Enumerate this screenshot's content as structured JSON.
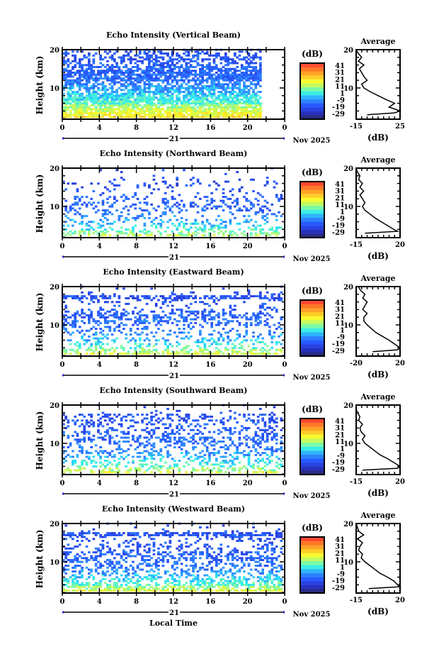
{
  "chart_data": [
    {
      "type": "heatmap",
      "title": "Echo Intensity (Vertical Beam)",
      "ylabel": "Height (km)",
      "xlabel": "Local Time",
      "ylim": [
        0,
        20
      ],
      "xlim": [
        0,
        24
      ],
      "ytick_labels": [
        "20",
        "10"
      ],
      "xtick_labels": [
        "0",
        "4",
        "8",
        "12",
        "16",
        "20",
        "0"
      ],
      "day_label": "21",
      "date_label": "Nov 2025",
      "colorbar": {
        "label": "(dB)",
        "ticks": [
          "41",
          "31",
          "21",
          "11",
          "1",
          "-9",
          "-19",
          "-29"
        ],
        "range": [
          -34,
          46
        ]
      },
      "mean_db_by_km": [
        25,
        25,
        24,
        20,
        17,
        12,
        6,
        2,
        0,
        -3,
        -5,
        -9,
        -11,
        -12,
        -13,
        -12,
        -14,
        -15,
        -15,
        -16,
        -16
      ],
      "coverage_by_km": [
        0.9,
        0.9,
        0.9,
        0.9,
        0.9,
        0.85,
        0.85,
        0.8,
        0.75,
        0.7,
        0.7,
        0.5,
        0.8,
        0.8,
        0.8,
        0.6,
        0.5,
        0.5,
        0.4,
        0.3,
        0.2
      ],
      "data_end_hour": 21.5,
      "average": {
        "title": "Average",
        "xlabel": "(dB)",
        "xlim": [
          -15,
          25
        ],
        "xtick_labels": [
          "-15",
          "25"
        ],
        "ytick_labels": [
          "20",
          "10"
        ],
        "heights": [
          3,
          3.5,
          4,
          5,
          6,
          7,
          8,
          9,
          10,
          11,
          12,
          13,
          14,
          15,
          16,
          17,
          18,
          19,
          20
        ],
        "values": [
          -5,
          20,
          25,
          15,
          20,
          12,
          5,
          -2,
          -8,
          -10,
          -5,
          -8,
          -10,
          -12,
          -8,
          -13,
          -10,
          -13,
          -15
        ]
      }
    },
    {
      "type": "heatmap",
      "title": "Echo Intensity (Northward Beam)",
      "ylabel": "Height (km)",
      "xlabel": "Local Time",
      "ylim": [
        0,
        20
      ],
      "xlim": [
        0,
        24
      ],
      "ytick_labels": [
        "20",
        "10"
      ],
      "xtick_labels": [
        "0",
        "4",
        "8",
        "12",
        "16",
        "20",
        "0"
      ],
      "day_label": "21",
      "date_label": "Nov 2025",
      "colorbar": {
        "label": "(dB)",
        "ticks": [
          "41",
          "31",
          "21",
          "11",
          "1",
          "-9",
          "-19",
          "-29"
        ],
        "range": [
          -34,
          46
        ]
      },
      "mean_db_by_km": [
        18,
        16,
        14,
        10,
        4,
        0,
        -4,
        -8,
        -10,
        -12,
        -13,
        -12,
        -14,
        -15,
        -16,
        -17,
        -17,
        -18,
        -18,
        -18,
        -18
      ],
      "coverage_by_km": [
        0.6,
        0.6,
        0.55,
        0.4,
        0.3,
        0.25,
        0.25,
        0.2,
        0.2,
        0.25,
        0.3,
        0.25,
        0.2,
        0.12,
        0.1,
        0.1,
        0.12,
        0.08,
        0.03,
        0.02,
        0.02
      ],
      "data_end_hour": 23.7,
      "average": {
        "title": "Average",
        "xlabel": "(dB)",
        "xlim": [
          -15,
          20
        ],
        "xtick_labels": [
          "-15",
          "20"
        ],
        "ytick_labels": [
          "20",
          "10"
        ],
        "heights": [
          3,
          3.5,
          4,
          5,
          6,
          7,
          8,
          9,
          10,
          11,
          12,
          13,
          14,
          15,
          16,
          17,
          18,
          19,
          20
        ],
        "values": [
          -8,
          18,
          15,
          10,
          5,
          0,
          -4,
          -8,
          -10,
          -8,
          -10,
          -12,
          -9,
          -12,
          -10,
          -13,
          -12,
          -14,
          -15
        ]
      }
    },
    {
      "type": "heatmap",
      "title": "Echo Intensity (Eastward Beam)",
      "ylabel": "Height (km)",
      "xlabel": "Local Time",
      "ylim": [
        0,
        20
      ],
      "xlim": [
        0,
        24
      ],
      "ytick_labels": [
        "20",
        "10"
      ],
      "xtick_labels": [
        "0",
        "4",
        "8",
        "12",
        "16",
        "20",
        "0"
      ],
      "day_label": "21",
      "date_label": "Nov 2025",
      "colorbar": {
        "label": "(dB)",
        "ticks": [
          "41",
          "31",
          "21",
          "11",
          "1",
          "-9",
          "-19",
          "-29"
        ],
        "range": [
          -34,
          46
        ]
      },
      "mean_db_by_km": [
        22,
        20,
        18,
        12,
        6,
        2,
        -2,
        -6,
        -9,
        -11,
        -12,
        -11,
        -13,
        -14,
        -15,
        -15,
        -16,
        -16,
        -16,
        -17,
        -17
      ],
      "coverage_by_km": [
        0.85,
        0.85,
        0.75,
        0.4,
        0.3,
        0.3,
        0.25,
        0.2,
        0.2,
        0.25,
        0.35,
        0.4,
        0.45,
        0.3,
        0.2,
        0.15,
        0.2,
        0.6,
        0.1,
        0.03,
        0.02
      ],
      "data_end_hour": 23.7,
      "average": {
        "title": "Average",
        "xlabel": "(dB)",
        "xlim": [
          -20,
          20
        ],
        "xtick_labels": [
          "-20",
          "20"
        ],
        "ytick_labels": [
          "20",
          "10"
        ],
        "heights": [
          3,
          3.5,
          4,
          5,
          6,
          7,
          8,
          9,
          10,
          11,
          12,
          13,
          14,
          15,
          16,
          17,
          18,
          19,
          20
        ],
        "values": [
          -5,
          18,
          20,
          15,
          10,
          4,
          -2,
          -6,
          -10,
          -13,
          -13,
          -10,
          -14,
          -12,
          -10,
          -14,
          -12,
          -16,
          -18
        ]
      }
    },
    {
      "type": "heatmap",
      "title": "Echo Intensity (Southward Beam)",
      "ylabel": "Height (km)",
      "xlabel": "Local Time",
      "ylim": [
        0,
        20
      ],
      "xlim": [
        0,
        24
      ],
      "ytick_labels": [
        "20",
        "10"
      ],
      "xtick_labels": [
        "0",
        "4",
        "8",
        "12",
        "16",
        "20",
        "0"
      ],
      "day_label": "21",
      "date_label": "Nov 2025",
      "colorbar": {
        "label": "(dB)",
        "ticks": [
          "41",
          "31",
          "21",
          "11",
          "1",
          "-9",
          "-19",
          "-29"
        ],
        "range": [
          -34,
          46
        ]
      },
      "mean_db_by_km": [
        20,
        22,
        18,
        12,
        6,
        2,
        -2,
        -5,
        -8,
        -10,
        -11,
        -12,
        -13,
        -14,
        -15,
        -15,
        -16,
        -16,
        -17,
        -17,
        -18
      ],
      "coverage_by_km": [
        0.5,
        0.55,
        0.45,
        0.35,
        0.3,
        0.3,
        0.3,
        0.3,
        0.3,
        0.3,
        0.35,
        0.35,
        0.3,
        0.25,
        0.25,
        0.25,
        0.3,
        0.3,
        0.05,
        0.02,
        0.02
      ],
      "data_end_hour": 23.7,
      "average": {
        "title": "Average",
        "xlabel": "(dB)",
        "xlim": [
          -15,
          20
        ],
        "xtick_labels": [
          "-15",
          "20"
        ],
        "ytick_labels": [
          "20",
          "10"
        ],
        "heights": [
          3,
          3.5,
          4,
          5,
          6,
          7,
          8,
          9,
          10,
          11,
          12,
          13,
          14,
          15,
          16,
          17,
          18,
          19,
          20
        ],
        "values": [
          -10,
          18,
          20,
          15,
          10,
          4,
          0,
          -4,
          -8,
          -10,
          -8,
          -11,
          -12,
          -10,
          -13,
          -12,
          -14,
          -15,
          -15
        ]
      }
    },
    {
      "type": "heatmap",
      "title": "Echo Intensity (Westward Beam)",
      "ylabel": "Height (km)",
      "xlabel": "Local Time",
      "ylim": [
        0,
        20
      ],
      "xlim": [
        0,
        24
      ],
      "ytick_labels": [
        "20",
        "10"
      ],
      "xtick_labels": [
        "0",
        "4",
        "8",
        "12",
        "16",
        "20",
        "0"
      ],
      "day_label": "21",
      "date_label": "Nov 2025",
      "colorbar": {
        "label": "(dB)",
        "ticks": [
          "41",
          "31",
          "21",
          "11",
          "1",
          "-9",
          "-19",
          "-29"
        ],
        "range": [
          -34,
          46
        ]
      },
      "mean_db_by_km": [
        22,
        22,
        18,
        12,
        6,
        2,
        -2,
        -6,
        -9,
        -11,
        -12,
        -12,
        -13,
        -14,
        -15,
        -15,
        -16,
        -16,
        -17,
        -17,
        -17
      ],
      "coverage_by_km": [
        0.9,
        0.9,
        0.8,
        0.6,
        0.5,
        0.45,
        0.4,
        0.35,
        0.35,
        0.4,
        0.45,
        0.5,
        0.35,
        0.25,
        0.2,
        0.15,
        0.2,
        0.7,
        0.1,
        0.03,
        0.02
      ],
      "data_end_hour": 23.7,
      "average": {
        "title": "Average",
        "xlabel": "(dB)",
        "xlim": [
          -15,
          20
        ],
        "xtick_labels": [
          "-15",
          "20"
        ],
        "ytick_labels": [
          "20",
          "10"
        ],
        "heights": [
          3,
          3.5,
          4,
          5,
          6,
          7,
          8,
          9,
          10,
          11,
          12,
          13,
          14,
          15,
          16,
          17,
          18,
          19,
          20
        ],
        "values": [
          -5,
          20,
          18,
          15,
          10,
          4,
          0,
          -4,
          -8,
          -11,
          -10,
          -13,
          -12,
          -10,
          -14,
          -9,
          -13,
          -14,
          -15
        ]
      }
    }
  ],
  "footer": {
    "xlabel": "Local Time"
  }
}
